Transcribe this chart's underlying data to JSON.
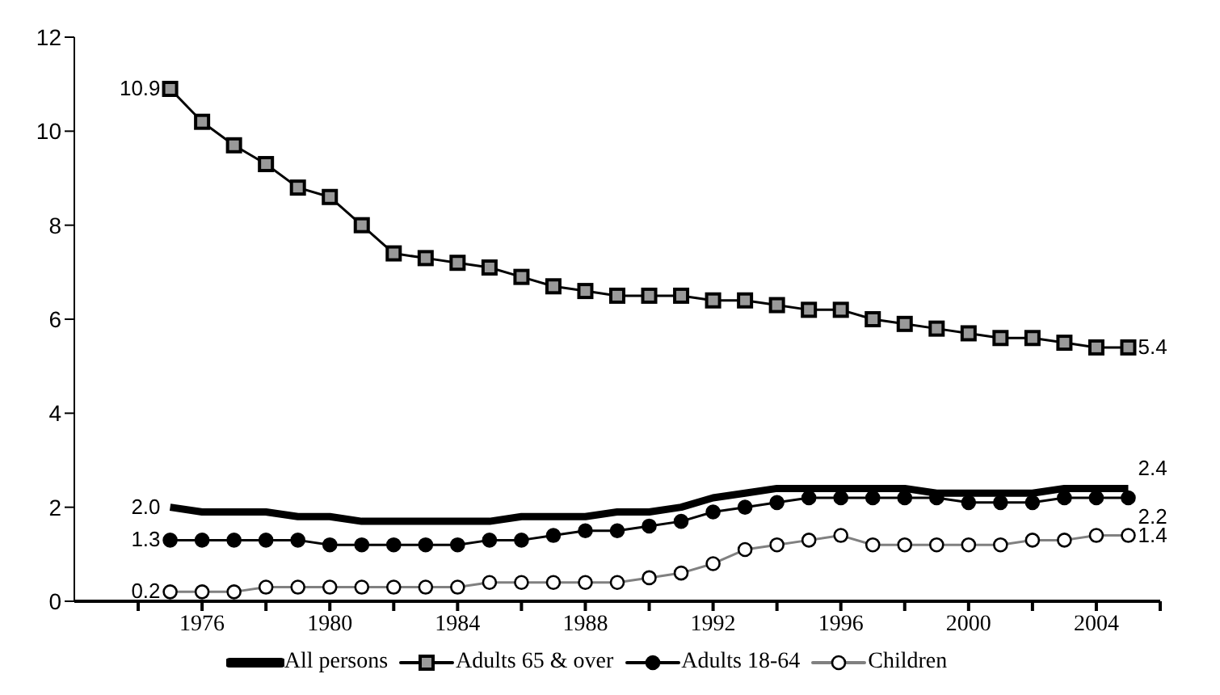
{
  "chart_data": {
    "type": "line",
    "x": [
      1975,
      1976,
      1977,
      1978,
      1979,
      1980,
      1981,
      1982,
      1983,
      1984,
      1985,
      1986,
      1987,
      1988,
      1989,
      1990,
      1991,
      1992,
      1993,
      1994,
      1995,
      1996,
      1997,
      1998,
      1999,
      2000,
      2001,
      2002,
      2003,
      2004,
      2005
    ],
    "series": [
      {
        "name": "All persons",
        "color": "#000000",
        "marker": "none",
        "values": [
          2.0,
          1.9,
          1.9,
          1.9,
          1.8,
          1.8,
          1.7,
          1.7,
          1.7,
          1.7,
          1.7,
          1.8,
          1.8,
          1.8,
          1.9,
          1.9,
          2.0,
          2.2,
          2.3,
          2.4,
          2.4,
          2.4,
          2.4,
          2.4,
          2.3,
          2.3,
          2.3,
          2.3,
          2.4,
          2.4,
          2.4
        ],
        "value_labels": [
          "2.0",
          null,
          null,
          null,
          null,
          null,
          null,
          null,
          null,
          null,
          null,
          null,
          null,
          null,
          null,
          null,
          null,
          null,
          null,
          null,
          null,
          null,
          null,
          null,
          null,
          null,
          null,
          null,
          null,
          null,
          "2.4"
        ]
      },
      {
        "name": "Adults 65 & over",
        "color": "#000000",
        "marker": "square",
        "values": [
          10.9,
          10.2,
          9.7,
          9.3,
          8.8,
          8.6,
          8.0,
          7.4,
          7.3,
          7.2,
          7.1,
          6.9,
          6.7,
          6.6,
          6.5,
          6.5,
          6.5,
          6.4,
          6.4,
          6.3,
          6.2,
          6.2,
          6.0,
          5.9,
          5.8,
          5.7,
          5.6,
          5.6,
          5.5,
          5.4,
          5.4
        ],
        "value_labels": [
          "10.9",
          null,
          null,
          null,
          null,
          null,
          null,
          null,
          null,
          null,
          null,
          null,
          null,
          null,
          null,
          null,
          null,
          null,
          null,
          null,
          null,
          null,
          null,
          null,
          null,
          null,
          null,
          null,
          null,
          null,
          "5.4"
        ]
      },
      {
        "name": "Adults 18-64",
        "color": "#000000",
        "marker": "circle",
        "values": [
          1.3,
          1.3,
          1.3,
          1.3,
          1.3,
          1.2,
          1.2,
          1.2,
          1.2,
          1.2,
          1.3,
          1.3,
          1.4,
          1.5,
          1.5,
          1.6,
          1.7,
          1.9,
          2.0,
          2.1,
          2.2,
          2.2,
          2.2,
          2.2,
          2.2,
          2.1,
          2.1,
          2.1,
          2.2,
          2.2,
          2.2
        ],
        "value_labels": [
          "1.3",
          null,
          null,
          null,
          null,
          null,
          null,
          null,
          null,
          null,
          null,
          null,
          null,
          null,
          null,
          null,
          null,
          null,
          null,
          null,
          null,
          null,
          null,
          null,
          null,
          null,
          null,
          null,
          null,
          null,
          "2.2"
        ]
      },
      {
        "name": "Children",
        "color": "#808080",
        "marker": "circle",
        "values": [
          0.2,
          0.2,
          0.2,
          0.3,
          0.3,
          0.3,
          0.3,
          0.3,
          0.3,
          0.3,
          0.4,
          0.4,
          0.4,
          0.4,
          0.4,
          0.5,
          0.6,
          0.8,
          1.1,
          1.2,
          1.3,
          1.4,
          1.2,
          1.2,
          1.2,
          1.2,
          1.2,
          1.3,
          1.3,
          1.4,
          1.4
        ],
        "value_labels": [
          "0.2",
          null,
          null,
          null,
          null,
          null,
          null,
          null,
          null,
          null,
          null,
          null,
          null,
          null,
          null,
          null,
          null,
          null,
          null,
          null,
          null,
          null,
          null,
          null,
          null,
          null,
          null,
          null,
          null,
          null,
          "1.4"
        ]
      }
    ],
    "xlim": [
      1972,
      2006
    ],
    "xticks": [
      {
        "value": 1974,
        "label": null
      },
      1976,
      {
        "value": 1978,
        "label": null
      },
      1980,
      {
        "value": 1982,
        "label": null
      },
      1984,
      {
        "value": 1986,
        "label": null
      },
      1988,
      {
        "value": 1990,
        "label": null
      },
      1992,
      {
        "value": 1994,
        "label": null
      },
      1996,
      {
        "value": 1998,
        "label": null
      },
      2000,
      {
        "value": 2002,
        "label": null
      },
      2004,
      {
        "value": 2006,
        "label": null
      }
    ],
    "ylim": [
      0,
      12
    ],
    "yticks": [
      0,
      2,
      4,
      6,
      8,
      10,
      12
    ],
    "grid": false,
    "legend": "bottom"
  }
}
